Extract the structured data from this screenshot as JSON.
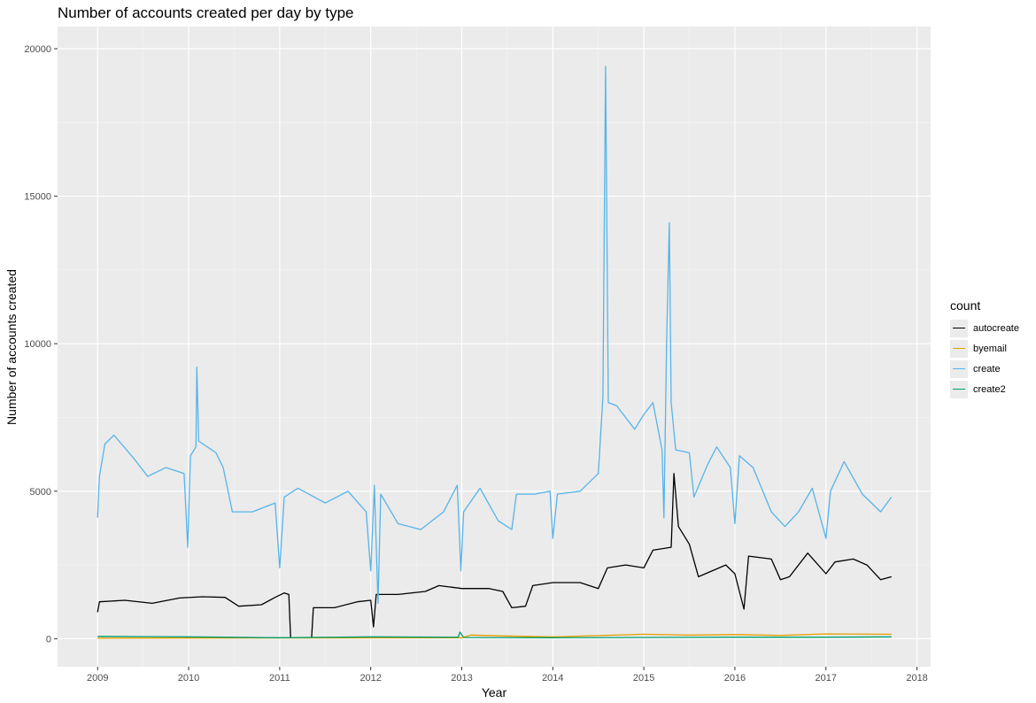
{
  "chart_data": {
    "type": "line",
    "title": "Number of accounts created per day by type",
    "xlabel": "Year",
    "ylabel": "Number of accounts created",
    "xlim": [
      2008.56,
      2018.15
    ],
    "ylim": [
      -950,
      20750
    ],
    "x_ticks": [
      "2009",
      "2010",
      "2011",
      "2012",
      "2013",
      "2014",
      "2015",
      "2016",
      "2017",
      "2018"
    ],
    "y_ticks": [
      "0",
      "5000",
      "10000",
      "15000",
      "20000"
    ],
    "grid": true,
    "legend_title": "count",
    "legend_position": "right",
    "series": [
      {
        "name": "autocreate",
        "color": "#000000",
        "points": [
          [
            2009.0,
            900
          ],
          [
            2009.02,
            1250
          ],
          [
            2009.3,
            1300
          ],
          [
            2009.6,
            1200
          ],
          [
            2009.9,
            1380
          ],
          [
            2010.15,
            1420
          ],
          [
            2010.4,
            1400
          ],
          [
            2010.55,
            1100
          ],
          [
            2010.8,
            1150
          ],
          [
            2010.95,
            1400
          ],
          [
            2011.05,
            1550
          ],
          [
            2011.1,
            1500
          ],
          [
            2011.12,
            30
          ],
          [
            2011.35,
            30
          ],
          [
            2011.37,
            1050
          ],
          [
            2011.6,
            1050
          ],
          [
            2011.85,
            1250
          ],
          [
            2012.0,
            1300
          ],
          [
            2012.03,
            400
          ],
          [
            2012.06,
            1500
          ],
          [
            2012.3,
            1500
          ],
          [
            2012.6,
            1600
          ],
          [
            2012.75,
            1800
          ],
          [
            2013.0,
            1700
          ],
          [
            2013.3,
            1700
          ],
          [
            2013.45,
            1600
          ],
          [
            2013.55,
            1050
          ],
          [
            2013.7,
            1100
          ],
          [
            2013.78,
            1800
          ],
          [
            2014.0,
            1900
          ],
          [
            2014.3,
            1900
          ],
          [
            2014.5,
            1700
          ],
          [
            2014.6,
            2400
          ],
          [
            2014.8,
            2500
          ],
          [
            2015.0,
            2400
          ],
          [
            2015.1,
            3000
          ],
          [
            2015.3,
            3100
          ],
          [
            2015.33,
            5600
          ],
          [
            2015.38,
            3800
          ],
          [
            2015.5,
            3200
          ],
          [
            2015.6,
            2100
          ],
          [
            2015.9,
            2500
          ],
          [
            2016.0,
            2200
          ],
          [
            2016.1,
            1000
          ],
          [
            2016.15,
            2800
          ],
          [
            2016.4,
            2700
          ],
          [
            2016.5,
            2000
          ],
          [
            2016.6,
            2100
          ],
          [
            2016.8,
            2900
          ],
          [
            2017.0,
            2200
          ],
          [
            2017.1,
            2600
          ],
          [
            2017.3,
            2700
          ],
          [
            2017.45,
            2500
          ],
          [
            2017.6,
            2000
          ],
          [
            2017.72,
            2100
          ]
        ]
      },
      {
        "name": "byemail",
        "color": "#e69f00",
        "points": [
          [
            2009.0,
            20
          ],
          [
            2013.0,
            30
          ],
          [
            2013.1,
            120
          ],
          [
            2013.5,
            90
          ],
          [
            2014.0,
            60
          ],
          [
            2015.0,
            150
          ],
          [
            2015.5,
            120
          ],
          [
            2016.0,
            140
          ],
          [
            2016.5,
            110
          ],
          [
            2017.0,
            160
          ],
          [
            2017.72,
            150
          ]
        ]
      },
      {
        "name": "create",
        "color": "#56b4e9",
        "points": [
          [
            2009.0,
            4100
          ],
          [
            2009.02,
            5500
          ],
          [
            2009.08,
            6600
          ],
          [
            2009.18,
            6900
          ],
          [
            2009.4,
            6100
          ],
          [
            2009.55,
            5500
          ],
          [
            2009.75,
            5800
          ],
          [
            2009.95,
            5600
          ],
          [
            2009.99,
            3100
          ],
          [
            2010.02,
            6200
          ],
          [
            2010.08,
            6500
          ],
          [
            2010.09,
            9200
          ],
          [
            2010.11,
            6700
          ],
          [
            2010.3,
            6300
          ],
          [
            2010.38,
            5800
          ],
          [
            2010.48,
            4300
          ],
          [
            2010.7,
            4300
          ],
          [
            2010.95,
            4600
          ],
          [
            2011.0,
            2400
          ],
          [
            2011.05,
            4800
          ],
          [
            2011.2,
            5100
          ],
          [
            2011.5,
            4600
          ],
          [
            2011.75,
            5000
          ],
          [
            2011.95,
            4300
          ],
          [
            2012.0,
            2300
          ],
          [
            2012.04,
            5200
          ],
          [
            2012.08,
            1200
          ],
          [
            2012.11,
            4900
          ],
          [
            2012.3,
            3900
          ],
          [
            2012.55,
            3700
          ],
          [
            2012.8,
            4300
          ],
          [
            2012.95,
            5200
          ],
          [
            2012.99,
            2300
          ],
          [
            2013.02,
            4300
          ],
          [
            2013.2,
            5100
          ],
          [
            2013.4,
            4000
          ],
          [
            2013.55,
            3700
          ],
          [
            2013.6,
            4900
          ],
          [
            2013.8,
            4900
          ],
          [
            2013.97,
            5000
          ],
          [
            2014.0,
            3400
          ],
          [
            2014.05,
            4900
          ],
          [
            2014.3,
            5000
          ],
          [
            2014.5,
            5600
          ],
          [
            2014.55,
            8200
          ],
          [
            2014.58,
            19400
          ],
          [
            2014.61,
            8000
          ],
          [
            2014.7,
            7900
          ],
          [
            2014.9,
            7100
          ],
          [
            2015.0,
            7600
          ],
          [
            2015.1,
            8000
          ],
          [
            2015.2,
            6400
          ],
          [
            2015.22,
            4100
          ],
          [
            2015.25,
            10000
          ],
          [
            2015.28,
            14100
          ],
          [
            2015.3,
            8000
          ],
          [
            2015.35,
            6400
          ],
          [
            2015.5,
            6300
          ],
          [
            2015.55,
            4800
          ],
          [
            2015.7,
            5900
          ],
          [
            2015.8,
            6500
          ],
          [
            2015.95,
            5800
          ],
          [
            2016.0,
            3900
          ],
          [
            2016.05,
            6200
          ],
          [
            2016.2,
            5800
          ],
          [
            2016.4,
            4300
          ],
          [
            2016.55,
            3800
          ],
          [
            2016.7,
            4300
          ],
          [
            2016.85,
            5100
          ],
          [
            2017.0,
            3400
          ],
          [
            2017.05,
            5000
          ],
          [
            2017.2,
            6000
          ],
          [
            2017.4,
            4900
          ],
          [
            2017.6,
            4300
          ],
          [
            2017.72,
            4800
          ]
        ]
      },
      {
        "name": "create2",
        "color": "#009e73",
        "points": [
          [
            2009.0,
            80
          ],
          [
            2009.5,
            70
          ],
          [
            2010.0,
            60
          ],
          [
            2011.0,
            30
          ],
          [
            2012.0,
            60
          ],
          [
            2012.96,
            50
          ],
          [
            2012.98,
            220
          ],
          [
            2013.02,
            40
          ],
          [
            2014.0,
            30
          ],
          [
            2015.0,
            40
          ],
          [
            2016.0,
            50
          ],
          [
            2017.0,
            50
          ],
          [
            2017.72,
            60
          ]
        ]
      }
    ]
  }
}
